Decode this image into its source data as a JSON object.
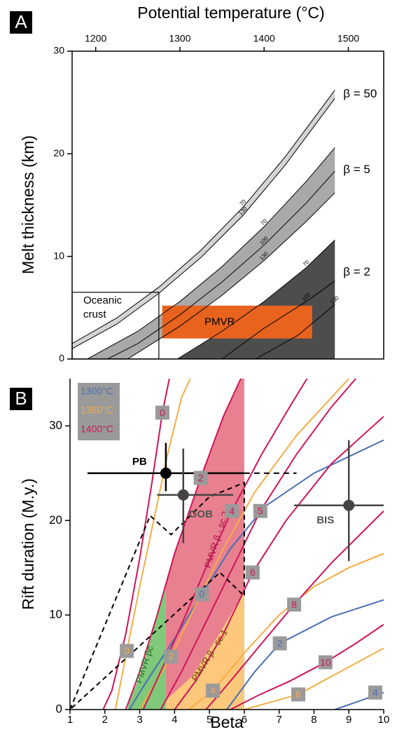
{
  "chart_data": [
    {
      "type": "band",
      "panel": "A",
      "title": "Potential temperature (°C)",
      "ylabel": "Melt thickness (km)",
      "xlim": [
        1172,
        1542
      ],
      "xticks": [
        1200,
        1300,
        1400,
        1500
      ],
      "ylim": [
        0,
        30
      ],
      "yticks": [
        0,
        10,
        20,
        30
      ],
      "bands": [
        {
          "name": "β = 50",
          "color": "#d4d4d4",
          "fill": "between",
          "lines": [
            {
              "label": "70",
              "x": [
                1172,
                1225,
                1275,
                1325,
                1375,
                1425,
                1484
              ],
              "y": [
                1.5,
                4.0,
                7.0,
                10.6,
                14.8,
                19.7,
                26.2
              ]
            },
            {
              "label": "130",
              "x": [
                1172,
                1225,
                1275,
                1325,
                1375,
                1425,
                1484
              ],
              "y": [
                1.0,
                3.4,
                6.4,
                9.9,
                14.0,
                18.9,
                25.4
              ]
            }
          ]
        },
        {
          "name": "β = 5",
          "color": "#a9a9a9",
          "fill": "between",
          "lines": [
            {
              "label": "70",
              "x": [
                1190,
                1250,
                1300,
                1350,
                1400,
                1450,
                1484
              ],
              "y": [
                0,
                2.7,
                5.6,
                9.0,
                12.9,
                17.3,
                20.6
              ]
            },
            {
              "label": "100",
              "x": [
                1214,
                1250,
                1300,
                1350,
                1400,
                1450,
                1484
              ],
              "y": [
                0,
                1.5,
                4.3,
                7.5,
                11.1,
                15.2,
                18.3
              ]
            },
            {
              "label": "130",
              "x": [
                1238,
                1300,
                1350,
                1400,
                1450,
                1484
              ],
              "y": [
                0,
                3.2,
                6.2,
                9.6,
                13.4,
                16.2
              ]
            }
          ]
        },
        {
          "name": "β = 2",
          "color": "#4d4d4d",
          "fill": "below",
          "lines": [
            {
              "label": "70",
              "x": [
                1297,
                1350,
                1400,
                1450,
                1484
              ],
              "y": [
                0,
                2.7,
                5.6,
                8.9,
                11.6
              ]
            },
            {
              "label": "100",
              "x": [
                1350,
                1400,
                1450,
                1484
              ],
              "y": [
                0,
                3.0,
                5.6,
                7.6
              ]
            },
            {
              "label": "130",
              "x": [
                1390,
                1440,
                1484
              ],
              "y": [
                0,
                2.3,
                5.3
              ]
            }
          ]
        }
      ],
      "regions": [
        {
          "name": "PMVR",
          "color": "#e8631e",
          "xlim": [
            1279,
            1457
          ],
          "ylim": [
            2.0,
            5.2
          ]
        }
      ],
      "oceanic_crust": {
        "label": [
          "Oceanic",
          "crust"
        ],
        "x": 1275,
        "y": 6.5
      }
    },
    {
      "type": "line",
      "panel": "B",
      "xlabel": "Beta",
      "ylabel": "Rift duration (M.y.)",
      "xlim": [
        1,
        10
      ],
      "xticks": [
        1,
        2,
        3,
        4,
        5,
        6,
        7,
        8,
        9,
        10
      ],
      "ylim": [
        0,
        35
      ],
      "yticks": [
        0,
        10,
        20,
        30
      ],
      "series": [
        {
          "name": "1300°C",
          "color": "#4a6fb5",
          "curves": [
            {
              "label": "0",
              "x": [
                2.7,
                3.2,
                4.0,
                4.78,
                5.6,
                6.6,
                8,
                10
              ],
              "y": [
                0,
                3,
                7.5,
                12.2,
                17,
                21.5,
                25,
                28.5
              ]
            },
            {
              "label": "2",
              "x": [
                5.5,
                6.3,
                7.02,
                8.5,
                10
              ],
              "y": [
                0,
                4,
                7,
                9.8,
                11.6
              ]
            },
            {
              "label": "4",
              "x": [
                8.6,
                9.3,
                10
              ],
              "y": [
                0,
                0.9,
                1.8
              ]
            }
          ]
        },
        {
          "name": "1350°C",
          "color": "#f5ad45",
          "curves": [
            {
              "label": "0",
              "x": [
                2.3,
                2.63,
                3.0,
                3.4,
                3.8,
                4.2,
                4.45
              ],
              "y": [
                0,
                6.2,
                13,
                20,
                27,
                33,
                35
              ]
            },
            {
              "label": "2",
              "x": [
                3.0,
                3.4,
                3.9,
                4.6,
                5.4,
                6.3,
                7.5,
                8.5,
                9.0
              ],
              "y": [
                0,
                2.5,
                5.6,
                11,
                17,
                23,
                29,
                33,
                35
              ]
            },
            {
              "label": "4",
              "x": [
                4.4,
                5.1,
                6,
                7,
                8,
                9,
                10
              ],
              "y": [
                0,
                2,
                6,
                10,
                13,
                15,
                16.5
              ]
            },
            {
              "label": "6",
              "x": [
                6.0,
                7.55,
                8.5,
                10
              ],
              "y": [
                0,
                1.6,
                3.5,
                6.5
              ]
            }
          ]
        },
        {
          "name": "1400°C",
          "color": "#cf145a",
          "curves": [
            {
              "label": "0",
              "x": [
                1.95,
                2.2,
                2.6,
                3.0,
                3.35,
                3.65,
                3.85
              ],
              "y": [
                0,
                2,
                8,
                16,
                24,
                31.4,
                35
              ]
            },
            {
              "label": "2",
              "x": [
                2.6,
                3.0,
                3.5,
                4.0,
                4.75,
                5.4,
                5.9
              ],
              "y": [
                0,
                4,
                10,
                16.5,
                24.5,
                31,
                35
              ]
            },
            {
              "label": "4",
              "x": [
                3.1,
                3.6,
                4.2,
                4.9,
                5.64,
                6.5,
                7.3,
                7.8
              ],
              "y": [
                0,
                4,
                9,
                15,
                21,
                27,
                32,
                35
              ]
            },
            {
              "label": "5",
              "x": [
                3.6,
                4.2,
                5.0,
                5.8,
                6.46,
                7.5,
                8.5,
                9.2
              ],
              "y": [
                0,
                4,
                10,
                16,
                21,
                27,
                32,
                35
              ]
            },
            {
              "label": "6",
              "x": [
                4.0,
                4.6,
                5.4,
                6.24,
                7.2,
                8.5,
                10
              ],
              "y": [
                0,
                3,
                8,
                14.5,
                20,
                26,
                31
              ]
            },
            {
              "label": "8",
              "x": [
                4.9,
                5.6,
                6.5,
                7.43,
                8.5,
                10
              ],
              "y": [
                0,
                3,
                7,
                11.1,
                15.5,
                21
              ]
            },
            {
              "label": "10",
              "x": [
                5.6,
                6.4,
                7.3,
                8.33,
                9.2,
                10
              ],
              "y": [
                0,
                1.5,
                3,
                5,
                7,
                9
              ]
            }
          ]
        }
      ],
      "regions": [
        {
          "name": "PMVR β - sc.2",
          "color": "#e8808f",
          "x": [
            3.75,
            6,
            6,
            5.9,
            5.4,
            4.75,
            4.0,
            3.75
          ],
          "y": [
            0,
            0,
            35,
            35,
            31,
            24.5,
            16.5,
            13.5
          ]
        },
        {
          "name": "PMVR β - sc.1",
          "color": "#fdc87c",
          "x": [
            3.75,
            6,
            6,
            5.2,
            4.5,
            3.75
          ],
          "y": [
            0,
            0,
            12.5,
            7.5,
            3.5,
            1
          ]
        },
        {
          "name": "PMVR βc",
          "color": "#80c87a",
          "x": [
            2.65,
            3.75,
            3.75,
            3.35,
            3.0,
            2.7
          ],
          "y": [
            0,
            0,
            13,
            8,
            3.5,
            1
          ]
        }
      ],
      "dashed": [
        {
          "x": [
            1,
            3.3,
            3.9,
            5,
            6,
            6,
            5.3,
            1
          ],
          "y": [
            0,
            20.5,
            18.5,
            22.5,
            24,
            12,
            14.5,
            0
          ]
        }
      ],
      "points": [
        {
          "name": "PB",
          "x": 3.75,
          "y": 25,
          "xmin": 1.5,
          "xmax": 6,
          "xdash": 7.5,
          "ymin": 23.1,
          "ymax": 28.2
        },
        {
          "name": "GOB",
          "x": 4.25,
          "y": 22.7,
          "xmin": 3.5,
          "xmax": 5.68,
          "ymin": 17.6,
          "ymax": 27.6
        },
        {
          "name": "BIS",
          "x": 9,
          "y": 21.6,
          "xmin": 7.43,
          "xmax": 10,
          "ymin": 15.7,
          "ymax": 28.5
        }
      ]
    }
  ]
}
